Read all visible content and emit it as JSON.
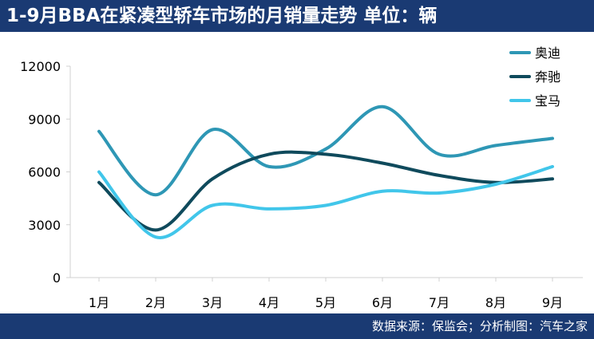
{
  "header": {
    "title": "1-9月BBA在紧凑型轿车市场的月销量走势  单位：辆"
  },
  "footer": {
    "source": "数据来源：保监会；分析制图：汽车之家"
  },
  "chart_data": {
    "type": "line",
    "title": "1-9月BBA在紧凑型轿车市场的月销量走势  单位：辆",
    "xlabel": "",
    "ylabel": "",
    "categories": [
      "1月",
      "2月",
      "3月",
      "4月",
      "5月",
      "6月",
      "7月",
      "8月",
      "9月"
    ],
    "ylim": [
      0,
      12000
    ],
    "yticks": [
      0,
      3000,
      6000,
      9000,
      12000
    ],
    "legend_position": "top-right",
    "grid": false,
    "series": [
      {
        "name": "奥迪",
        "color": "#2e97b5",
        "values": [
          8300,
          4700,
          8400,
          6300,
          7300,
          9700,
          7000,
          7500,
          7900
        ]
      },
      {
        "name": "奔驰",
        "color": "#0f4a5c",
        "values": [
          5400,
          2700,
          5600,
          7000,
          7000,
          6500,
          5800,
          5400,
          5600
        ]
      },
      {
        "name": "宝马",
        "color": "#41c6ea",
        "values": [
          6000,
          2300,
          4100,
          3900,
          4100,
          4900,
          4800,
          5300,
          6300
        ]
      }
    ]
  }
}
